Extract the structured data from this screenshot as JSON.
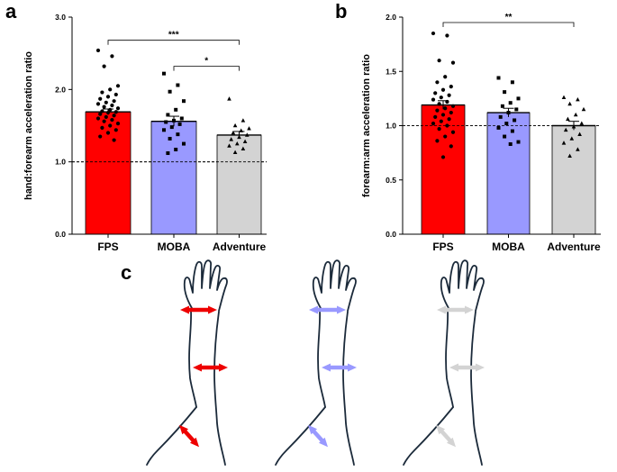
{
  "panel_labels": {
    "a": "a",
    "b": "b",
    "c": "c"
  },
  "colors": {
    "FPS": "#ff0000",
    "MOBA": "#9999ff",
    "Adventure": "#d3d3d3"
  },
  "chart_data": [
    {
      "panel": "a",
      "type": "bar",
      "categories": [
        "FPS",
        "MOBA",
        "Adventure"
      ],
      "values": [
        1.69,
        1.56,
        1.37
      ],
      "sem": [
        0.04,
        0.07,
        0.05
      ],
      "ylabel": "hand:forearm acceleration ratio",
      "ylim": [
        0.0,
        3.0
      ],
      "yticks": [
        "0.0",
        "1.0",
        "2.0",
        "3.0"
      ],
      "reference_line": 1.0,
      "points": [
        [
          2.54,
          2.46,
          2.32,
          2.05,
          2.0,
          1.96,
          1.93,
          1.9,
          1.87,
          1.84,
          1.82,
          1.8,
          1.78,
          1.76,
          1.74,
          1.72,
          1.7,
          1.69,
          1.68,
          1.66,
          1.64,
          1.62,
          1.6,
          1.58,
          1.56,
          1.53,
          1.5,
          1.47,
          1.44,
          1.4,
          1.35,
          1.3
        ],
        [
          2.22,
          2.06,
          1.97,
          1.84,
          1.72,
          1.65,
          1.6,
          1.57,
          1.55,
          1.52,
          1.48,
          1.44,
          1.38,
          1.32,
          1.25,
          1.17,
          1.12
        ],
        [
          1.87,
          1.57,
          1.5,
          1.46,
          1.43,
          1.4,
          1.37,
          1.34,
          1.31,
          1.28,
          1.25,
          1.22,
          1.18,
          1.13
        ]
      ],
      "significance": [
        {
          "from": "FPS",
          "to": "Adventure",
          "label": "***",
          "y": 2.68
        },
        {
          "from": "MOBA",
          "to": "Adventure",
          "label": "*",
          "y": 2.32
        }
      ]
    },
    {
      "panel": "b",
      "type": "bar",
      "categories": [
        "FPS",
        "MOBA",
        "Adventure"
      ],
      "values": [
        1.19,
        1.12,
        1.0
      ],
      "sem": [
        0.04,
        0.04,
        0.04
      ],
      "ylabel": "forearm:arm acceleration ratio",
      "ylim": [
        0.0,
        2.0
      ],
      "yticks": [
        "0.0",
        "0.5",
        "1.0",
        "1.5",
        "2.0"
      ],
      "reference_line": 1.0,
      "points": [
        [
          1.85,
          1.83,
          1.6,
          1.58,
          1.45,
          1.4,
          1.36,
          1.33,
          1.3,
          1.28,
          1.26,
          1.24,
          1.22,
          1.2,
          1.18,
          1.16,
          1.14,
          1.12,
          1.1,
          1.08,
          1.06,
          1.04,
          1.02,
          1.0,
          0.97,
          0.94,
          0.9,
          0.86,
          0.81,
          0.71
        ],
        [
          1.44,
          1.4,
          1.31,
          1.25,
          1.21,
          1.18,
          1.15,
          1.12,
          1.08,
          1.05,
          1.02,
          0.98,
          0.95,
          0.9,
          0.85,
          0.83
        ],
        [
          1.26,
          1.24,
          1.2,
          1.15,
          1.1,
          1.06,
          1.02,
          0.99,
          0.96,
          0.92,
          0.88,
          0.84,
          0.78,
          0.72
        ]
      ],
      "significance": [
        {
          "from": "FPS",
          "to": "Adventure",
          "label": "**",
          "y": 1.95
        }
      ]
    }
  ],
  "arm_diagrams": [
    {
      "group": "FPS",
      "arrow_color": "#ee0000"
    },
    {
      "group": "MOBA",
      "arrow_color": "#9999ff"
    },
    {
      "group": "Adventure",
      "arrow_color": "#d3d3d3"
    }
  ]
}
